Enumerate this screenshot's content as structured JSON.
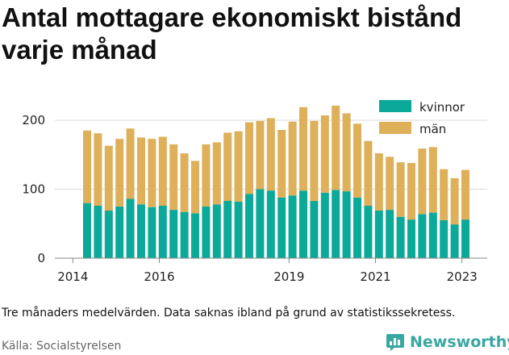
{
  "title": "Antal mottagare ekonomiskt bistånd varje månad",
  "note": "Tre månaders medelvärden. Data saknas ibland på grund av statistikssekretess.",
  "source": "Källa: Socialstyrelsen",
  "brand": {
    "name": "Newsworthy",
    "icon": "bar-chart-logo-icon",
    "color": "#3aa7a1"
  },
  "colors": {
    "kvinnor": "#0aa99a",
    "man": "#deb05a",
    "grid": "#d9d9d9",
    "axis": "#888888"
  },
  "chart_data": {
    "type": "bar",
    "stacked": true,
    "x_ticks": [
      "2014",
      "2016",
      "2019",
      "2021",
      "2023"
    ],
    "y_ticks": [
      "0",
      "100",
      "200"
    ],
    "ylim": [
      0,
      240
    ],
    "grid": true,
    "legend_position": "top-right",
    "series": [
      {
        "name": "kvinnor",
        "values": [
          80,
          76,
          69,
          75,
          86,
          78,
          74,
          76,
          70,
          67,
          65,
          75,
          78,
          83,
          82,
          93,
          100,
          98,
          88,
          91,
          98,
          83,
          95,
          99,
          97,
          88,
          76,
          69,
          70,
          60,
          56,
          64,
          66,
          55,
          49,
          56
        ]
      },
      {
        "name": "män",
        "values": [
          105,
          105,
          94,
          98,
          102,
          97,
          99,
          100,
          95,
          85,
          76,
          90,
          90,
          99,
          102,
          104,
          99,
          105,
          98,
          107,
          121,
          116,
          112,
          122,
          113,
          107,
          94,
          83,
          77,
          79,
          82,
          95,
          95,
          74,
          67,
          72
        ]
      }
    ]
  }
}
